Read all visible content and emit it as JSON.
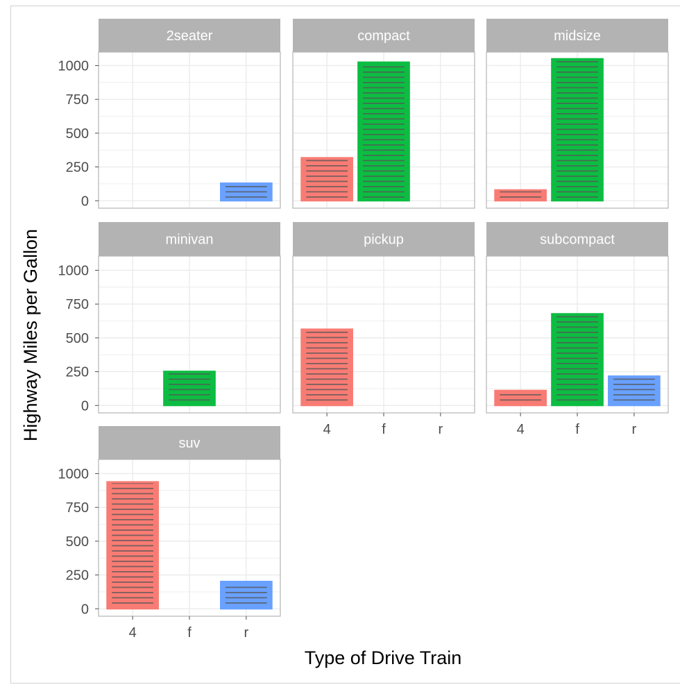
{
  "chart_data": {
    "type": "bar",
    "faceted_by": "class",
    "xlabel": "Type of Drive Train",
    "ylabel": "Highway Miles per Gallon",
    "categories": [
      "4",
      "f",
      "r"
    ],
    "y_ticks": [
      0,
      250,
      500,
      750,
      1000
    ],
    "ylim": [
      0,
      1100
    ],
    "grid": true,
    "colors": {
      "4": "#F8766D",
      "f": "#00BA38",
      "r": "#619CFF"
    },
    "stripe_color": "#555555",
    "strip_color": "#B3B3B3",
    "facets": [
      {
        "name": "2seater",
        "values": {
          "r": 130
        }
      },
      {
        "name": "compact",
        "values": {
          "4": 318,
          "f": 1025
        }
      },
      {
        "name": "midsize",
        "values": {
          "4": 80,
          "f": 1050
        }
      },
      {
        "name": "minivan",
        "values": {
          "f": 252
        }
      },
      {
        "name": "pickup",
        "values": {
          "4": 564
        }
      },
      {
        "name": "subcompact",
        "values": {
          "4": 111,
          "f": 678,
          "r": 217
        }
      },
      {
        "name": "suv",
        "values": {
          "4": 939,
          "r": 202
        }
      }
    ]
  }
}
